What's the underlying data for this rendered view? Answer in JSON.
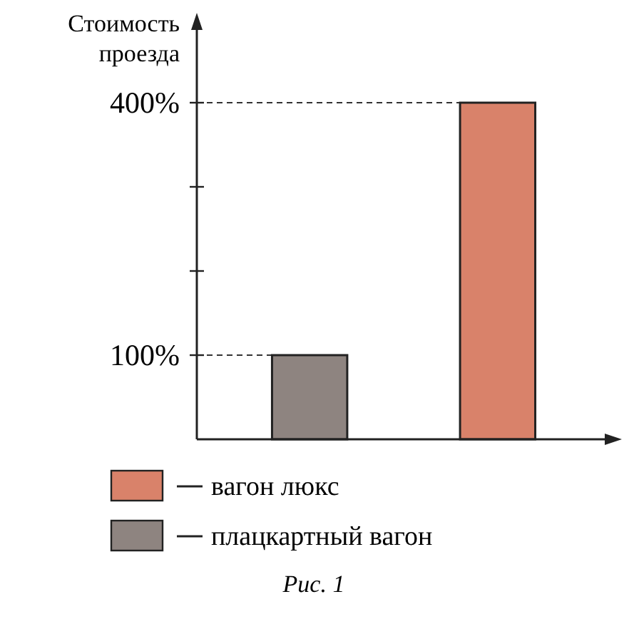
{
  "chart_data": {
    "type": "bar",
    "ylabel": "Стоимость проезда",
    "categories": [
      null,
      null
    ],
    "stacked": true,
    "series": [
      {
        "name": "вагон люкс",
        "color": "#d9826a",
        "values": [
          null,
          400
        ]
      },
      {
        "name": "плацкартный вагон",
        "color": "#8e8480",
        "values": [
          100,
          null
        ]
      }
    ],
    "ylim": [
      0,
      500
    ],
    "yticks": [
      {
        "value": 100,
        "label": "100%"
      },
      {
        "value": 200,
        "label": null
      },
      {
        "value": 300,
        "label": null
      },
      {
        "value": 400,
        "label": "400%"
      }
    ],
    "ref_lines": [
      {
        "axis": "y",
        "value": 100,
        "label": null,
        "line_style": "dashed"
      },
      {
        "axis": "y",
        "value": 400,
        "label": null,
        "line_style": "dashed"
      }
    ],
    "legend": "bottom",
    "annotations": [
      "Рис. 1"
    ]
  }
}
